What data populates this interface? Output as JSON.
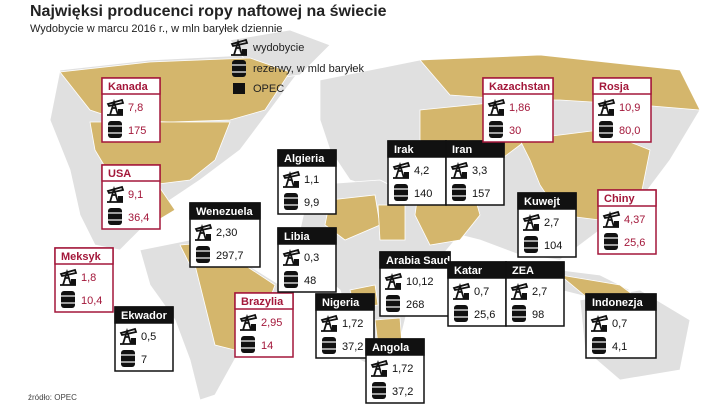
{
  "header": {
    "title": "Najwięksi producenci ropy naftowej na świecie",
    "subtitle": "Wydobycie w marcu 2016 r., w mln baryłek dziennie"
  },
  "legend": {
    "production": "wydobycie",
    "reserves": "rezerwy, w mld baryłek",
    "opec": "OPEC"
  },
  "source": "źródło: OPEC",
  "countries": [
    {
      "name": "Kanada",
      "production": "7,8",
      "reserves": "175",
      "opec": false
    },
    {
      "name": "USA",
      "production": "9,1",
      "reserves": "36,4",
      "opec": false
    },
    {
      "name": "Meksyk",
      "production": "1,8",
      "reserves": "10,4",
      "opec": false
    },
    {
      "name": "Ekwador",
      "production": "0,5",
      "reserves": "7",
      "opec": true
    },
    {
      "name": "Wenezuela",
      "production": "2,30",
      "reserves": "297,7",
      "opec": true
    },
    {
      "name": "Brazylia",
      "production": "2,95",
      "reserves": "14",
      "opec": false
    },
    {
      "name": "Algieria",
      "production": "1,1",
      "reserves": "9,9",
      "opec": true
    },
    {
      "name": "Libia",
      "production": "0,3",
      "reserves": "48",
      "opec": true
    },
    {
      "name": "Nigeria",
      "production": "1,72",
      "reserves": "37,2",
      "opec": true
    },
    {
      "name": "Angola",
      "production": "1,72",
      "reserves": "37,2",
      "opec": true
    },
    {
      "name": "Arabia Saud.",
      "production": "10,12",
      "reserves": "268",
      "opec": true
    },
    {
      "name": "Irak",
      "production": "4,2",
      "reserves": "140",
      "opec": true
    },
    {
      "name": "Iran",
      "production": "3,3",
      "reserves": "157",
      "opec": true
    },
    {
      "name": "Katar",
      "production": "0,7",
      "reserves": "25,6",
      "opec": true
    },
    {
      "name": "ZEA",
      "production": "2,7",
      "reserves": "98",
      "opec": true
    },
    {
      "name": "Kuwejt",
      "production": "2,7",
      "reserves": "104",
      "opec": true
    },
    {
      "name": "Kazachstan",
      "production": "1,86",
      "reserves": "30",
      "opec": false
    },
    {
      "name": "Rosja",
      "production": "10,9",
      "reserves": "80,0",
      "opec": false
    },
    {
      "name": "Chiny",
      "production": "4,37",
      "reserves": "25,6",
      "opec": false
    },
    {
      "name": "Indonezja",
      "production": "0,7",
      "reserves": "4,1",
      "opec": true
    }
  ]
}
